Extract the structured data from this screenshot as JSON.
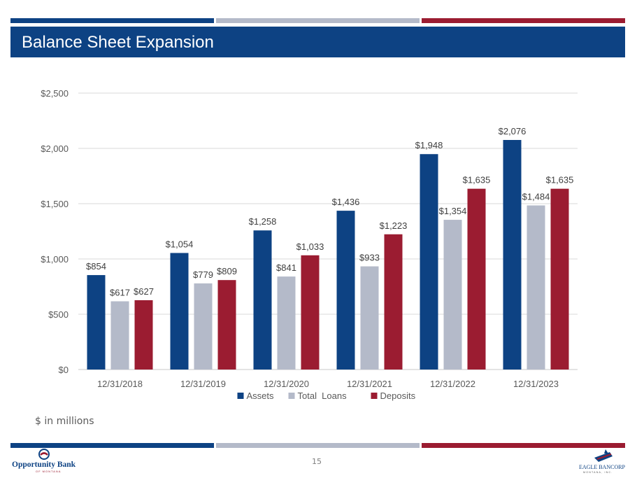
{
  "header": {
    "title": "Balance Sheet Expansion",
    "stripe_colors": [
      "#0d4283",
      "#b4bac9",
      "#9b1c31"
    ]
  },
  "chart_data": {
    "type": "bar",
    "title": "",
    "xlabel": "",
    "ylabel": "",
    "categories": [
      "12/31/2018",
      "12/31/2019",
      "12/31/2020",
      "12/31/2021",
      "12/31/2022",
      "12/31/2023"
    ],
    "series": [
      {
        "name": "Assets",
        "color": "#0d4283",
        "values": [
          854,
          1054,
          1258,
          1436,
          1948,
          2076
        ],
        "labels": [
          "$854",
          "$1,054",
          "$1,258",
          "$1,436",
          "$1,948",
          "$2,076"
        ]
      },
      {
        "name": "Total  Loans",
        "color": "#b4bac9",
        "values": [
          617,
          779,
          841,
          933,
          1354,
          1484
        ],
        "labels": [
          "$617",
          "$779",
          "$841",
          "$933",
          "$1,354",
          "$1,484"
        ]
      },
      {
        "name": "Deposits",
        "color": "#9b1c31",
        "values": [
          627,
          809,
          1033,
          1223,
          1635,
          1635
        ],
        "labels": [
          "$627",
          "$809",
          "$1,033",
          "$1,223",
          "$1,635",
          "$1,635"
        ]
      }
    ],
    "ylim": [
      0,
      2500
    ],
    "yticks": [
      0,
      500,
      1000,
      1500,
      2000,
      2500
    ],
    "ytick_labels": [
      "$0",
      "$500",
      "$1,000",
      "$1,500",
      "$2,000",
      "$2,500"
    ],
    "grid": true,
    "legend_position": "bottom"
  },
  "footer": {
    "units_note": "$ in millions",
    "page_number": "15",
    "logo_left_text": "Opportunity Bank",
    "logo_left_subtext": "OF MONTANA",
    "logo_right_text": "EAGLE BANCORP",
    "logo_right_subtext": "MONTANA, INC."
  }
}
